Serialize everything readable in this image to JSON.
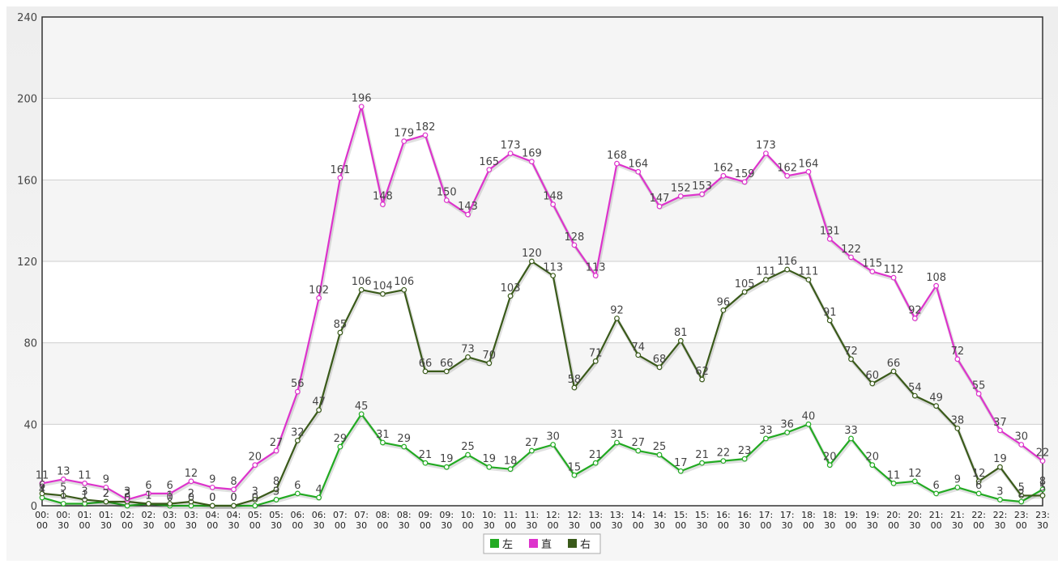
{
  "chart_data": {
    "type": "line",
    "ylim": [
      0,
      240
    ],
    "yticks": [
      "0",
      "40",
      "80",
      "120",
      "160",
      "200",
      "240"
    ],
    "grid": true,
    "legend_position": "bottom-center",
    "categories": [
      [
        "00:",
        "00"
      ],
      [
        "00:",
        "30"
      ],
      [
        "01:",
        "00"
      ],
      [
        "01:",
        "30"
      ],
      [
        "02:",
        "00"
      ],
      [
        "02:",
        "30"
      ],
      [
        "03:",
        "00"
      ],
      [
        "03:",
        "30"
      ],
      [
        "04:",
        "00"
      ],
      [
        "04:",
        "30"
      ],
      [
        "05:",
        "00"
      ],
      [
        "05:",
        "30"
      ],
      [
        "06:",
        "00"
      ],
      [
        "06:",
        "30"
      ],
      [
        "07:",
        "00"
      ],
      [
        "07:",
        "30"
      ],
      [
        "08:",
        "00"
      ],
      [
        "08:",
        "30"
      ],
      [
        "09:",
        "00"
      ],
      [
        "09:",
        "30"
      ],
      [
        "10:",
        "00"
      ],
      [
        "10:",
        "30"
      ],
      [
        "11:",
        "00"
      ],
      [
        "11:",
        "30"
      ],
      [
        "12:",
        "00"
      ],
      [
        "12:",
        "30"
      ],
      [
        "13:",
        "00"
      ],
      [
        "13:",
        "30"
      ],
      [
        "14:",
        "00"
      ],
      [
        "14:",
        "30"
      ],
      [
        "15:",
        "00"
      ],
      [
        "15:",
        "30"
      ],
      [
        "16:",
        "00"
      ],
      [
        "16:",
        "30"
      ],
      [
        "17:",
        "00"
      ],
      [
        "17:",
        "30"
      ],
      [
        "18:",
        "00"
      ],
      [
        "18:",
        "30"
      ],
      [
        "19:",
        "00"
      ],
      [
        "19:",
        "30"
      ],
      [
        "20:",
        "00"
      ],
      [
        "20:",
        "30"
      ],
      [
        "21:",
        "00"
      ],
      [
        "21:",
        "30"
      ],
      [
        "22:",
        "00"
      ],
      [
        "22:",
        "30"
      ],
      [
        "23:",
        "00"
      ],
      [
        "23:",
        "30"
      ]
    ],
    "series": [
      {
        "name": "左",
        "color": "#22aa22",
        "values": [
          4,
          1,
          1,
          2,
          0,
          1,
          0,
          0,
          0,
          0,
          0,
          3,
          6,
          4,
          29,
          45,
          31,
          29,
          21,
          19,
          25,
          19,
          18,
          27,
          30,
          15,
          21,
          31,
          27,
          25,
          17,
          21,
          22,
          23,
          33,
          36,
          40,
          20,
          33,
          20,
          11,
          12,
          6,
          9,
          6,
          3,
          2,
          8
        ]
      },
      {
        "name": "直",
        "color": "#dd33cc",
        "values": [
          11,
          13,
          11,
          9,
          3,
          6,
          6,
          12,
          9,
          8,
          20,
          27,
          56,
          102,
          161,
          196,
          148,
          179,
          182,
          150,
          143,
          165,
          173,
          169,
          148,
          128,
          113,
          168,
          164,
          147,
          152,
          153,
          162,
          159,
          173,
          162,
          164,
          131,
          122,
          115,
          112,
          92,
          108,
          72,
          55,
          37,
          30,
          22
        ]
      },
      {
        "name": "右",
        "color": "#3a5a1a",
        "values": [
          6,
          5,
          3,
          2,
          2,
          1,
          1,
          2,
          0,
          0,
          3,
          8,
          32,
          47,
          85,
          106,
          104,
          106,
          66,
          66,
          73,
          70,
          103,
          120,
          113,
          58,
          71,
          92,
          74,
          68,
          81,
          62,
          96,
          105,
          111,
          116,
          111,
          91,
          72,
          60,
          66,
          54,
          49,
          38,
          12,
          19,
          5,
          5
        ]
      }
    ]
  }
}
